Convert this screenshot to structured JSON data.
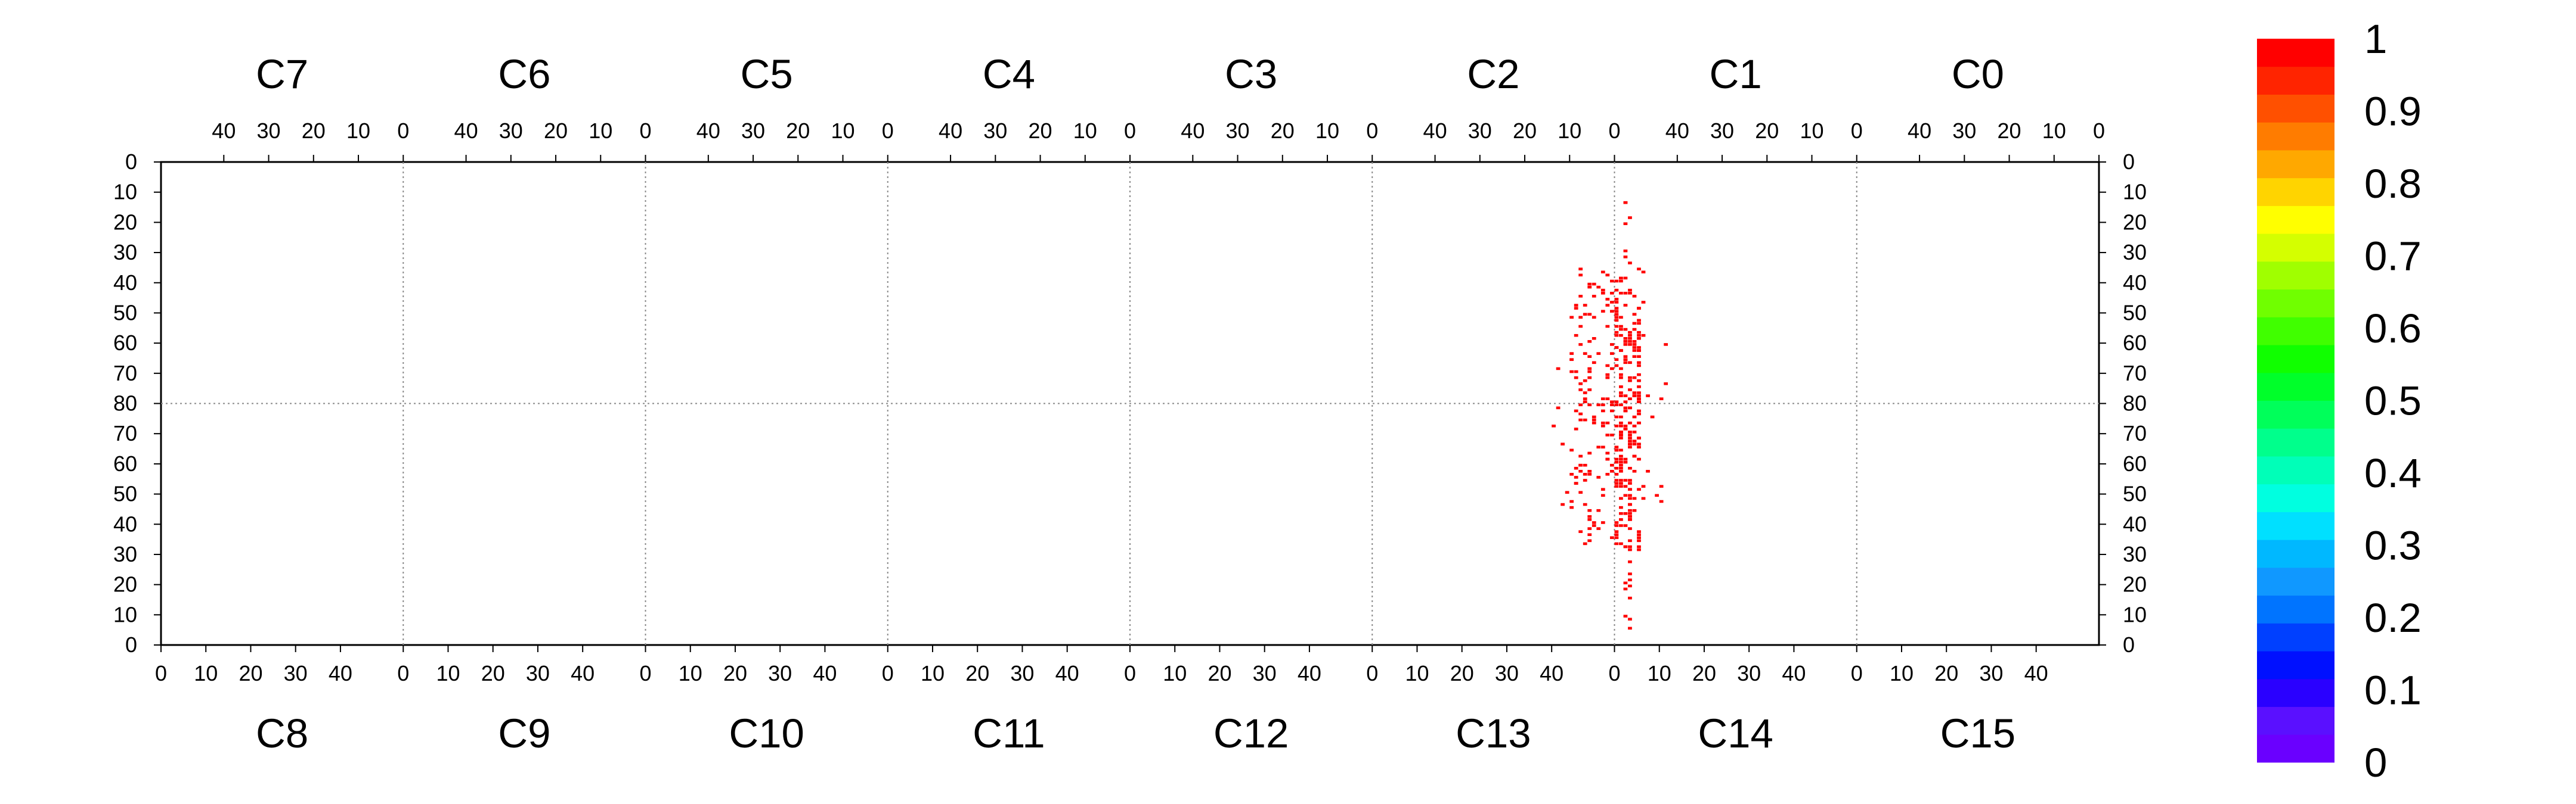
{
  "chart_data": {
    "type": "heatmap",
    "top_chips": [
      "C7",
      "C6",
      "C5",
      "C4",
      "C3",
      "C2",
      "C1",
      "C0"
    ],
    "bottom_chips": [
      "C8",
      "C9",
      "C10",
      "C11",
      "C12",
      "C13",
      "C14",
      "C15"
    ],
    "top_x_ticks": [
      "40",
      "30",
      "20",
      "10",
      "0"
    ],
    "bottom_x_ticks": [
      "0",
      "10",
      "20",
      "30",
      "40"
    ],
    "y_ticks_upper": [
      "0",
      "10",
      "20",
      "30",
      "40",
      "50",
      "60",
      "70",
      "80"
    ],
    "y_ticks_lower": [
      "70",
      "60",
      "50",
      "40",
      "30",
      "20",
      "10",
      "0"
    ],
    "colorbar": {
      "ticks": [
        "0",
        "0.1",
        "0.2",
        "0.3",
        "0.4",
        "0.5",
        "0.6",
        "0.7",
        "0.8",
        "0.9",
        "1"
      ],
      "colors": [
        "#6a00ff",
        "#5a10ff",
        "#2a00ff",
        "#0010ff",
        "#0040ff",
        "#0074ff",
        "#1098ff",
        "#00b8ff",
        "#00e0ff",
        "#00ffe0",
        "#00ffb8",
        "#00ff8c",
        "#00ff5a",
        "#00ff2a",
        "#10ff00",
        "#40ff00",
        "#70ff00",
        "#a0ff00",
        "#d4ff00",
        "#ffff00",
        "#ffd400",
        "#ffa800",
        "#ff7c00",
        "#ff5000",
        "#ff2400",
        "#ff0000"
      ]
    },
    "hit_color": "#ff0000",
    "hit_value": 1,
    "hit_region": {
      "chips": [
        "C2",
        "C1",
        "C13",
        "C14"
      ],
      "column_range": [
        -14,
        12
      ],
      "row_range": [
        5,
        155
      ]
    },
    "grid": "dotted chip boundaries"
  }
}
